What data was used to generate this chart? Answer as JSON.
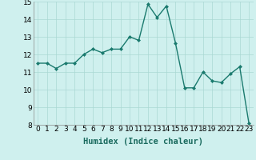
{
  "x": [
    0,
    1,
    2,
    3,
    4,
    5,
    6,
    7,
    8,
    9,
    10,
    11,
    12,
    13,
    14,
    15,
    16,
    17,
    18,
    19,
    20,
    21,
    22,
    23
  ],
  "y": [
    11.5,
    11.5,
    11.2,
    11.5,
    11.5,
    12.0,
    12.3,
    12.1,
    12.3,
    12.3,
    13.0,
    12.8,
    14.85,
    14.1,
    14.75,
    12.65,
    10.1,
    10.1,
    11.0,
    10.5,
    10.4,
    10.9,
    11.3,
    8.1
  ],
  "line_color": "#1a7a6e",
  "marker": "D",
  "marker_size": 2.0,
  "bg_color": "#cff0ee",
  "grid_color": "#aad8d3",
  "xlabel": "Humidex (Indice chaleur)",
  "ylim": [
    8,
    15
  ],
  "xlim": [
    -0.5,
    23.5
  ],
  "yticks": [
    8,
    9,
    10,
    11,
    12,
    13,
    14,
    15
  ],
  "xticks": [
    0,
    1,
    2,
    3,
    4,
    5,
    6,
    7,
    8,
    9,
    10,
    11,
    12,
    13,
    14,
    15,
    16,
    17,
    18,
    19,
    20,
    21,
    22,
    23
  ],
  "tick_label_size": 6.5,
  "xlabel_size": 7.5,
  "line_width": 1.0
}
